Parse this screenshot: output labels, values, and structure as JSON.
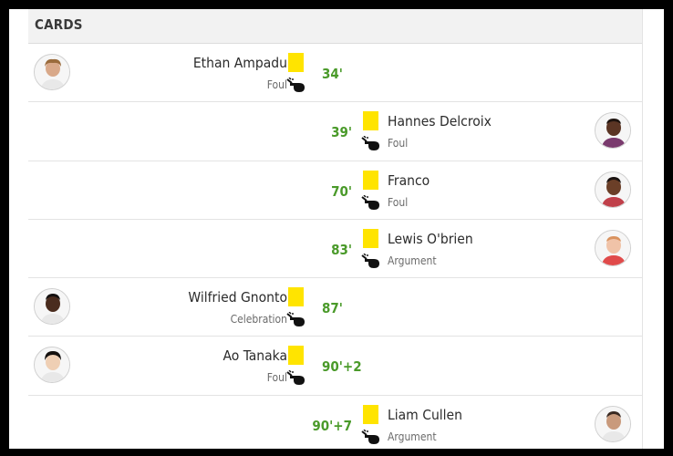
{
  "section_title": "CARDS",
  "colors": {
    "minute": "#4a9a2a",
    "yellow_card": "#ffe400"
  },
  "events": [
    {
      "side": "home",
      "player": "Ethan Ampadu",
      "reason": "Foul",
      "minute": "34'",
      "card": "yellow"
    },
    {
      "side": "away",
      "player": "Hannes Delcroix",
      "reason": "Foul",
      "minute": "39'",
      "card": "yellow"
    },
    {
      "side": "away",
      "player": "Franco",
      "reason": "Foul",
      "minute": "70'",
      "card": "yellow"
    },
    {
      "side": "away",
      "player": "Lewis O'brien",
      "reason": "Argument",
      "minute": "83'",
      "card": "yellow"
    },
    {
      "side": "home",
      "player": "Wilfried Gnonto",
      "reason": "Celebration",
      "minute": "87'",
      "card": "yellow"
    },
    {
      "side": "home",
      "player": "Ao Tanaka",
      "reason": "Foul",
      "minute": "90'+2",
      "card": "yellow"
    },
    {
      "side": "away",
      "player": "Liam Cullen",
      "reason": "Argument",
      "minute": "90'+7",
      "card": "yellow"
    }
  ]
}
